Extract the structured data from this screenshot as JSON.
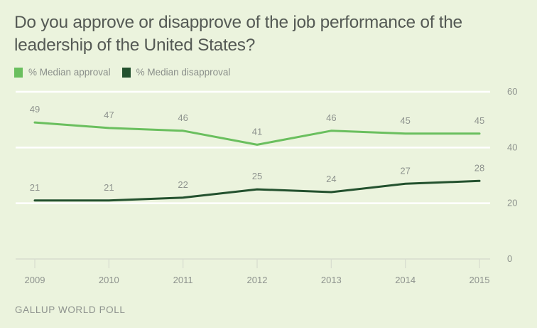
{
  "chart_data": {
    "type": "line",
    "title": "Do you approve or disapprove of the job performance of the leadership of the United States?",
    "xlabel": "",
    "ylabel": "",
    "x": [
      "2009",
      "2010",
      "2011",
      "2012",
      "2013",
      "2014",
      "2015"
    ],
    "series": [
      {
        "name": "% Median approval",
        "color": "#6abf5e",
        "values": [
          49,
          47,
          46,
          41,
          46,
          45,
          45
        ]
      },
      {
        "name": "% Median disapproval",
        "color": "#23512e",
        "values": [
          21,
          21,
          22,
          25,
          24,
          27,
          28
        ]
      }
    ],
    "ylim": [
      0,
      60
    ],
    "yticks": [
      0,
      20,
      40,
      60
    ],
    "grid": true,
    "legend_position": "top-left",
    "source": "GALLUP WORLD POLL"
  },
  "colors": {
    "background": "#ebf3dd",
    "grid": "#ffffff",
    "axis": "#d7dccf"
  }
}
